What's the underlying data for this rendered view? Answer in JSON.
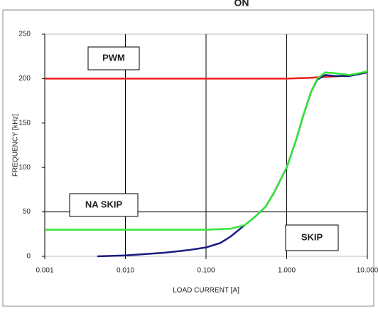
{
  "chart_data": {
    "type": "line",
    "title": "ON",
    "x_label": "LOAD CURRENT [A]",
    "y_label": "FREQUENCY [kHz]",
    "xscale": "log",
    "xlim": [
      0.001,
      10
    ],
    "xticks": [
      0.001,
      {
        "value": 0.01,
        "label": "0.010"
      },
      {
        "value": 0.1,
        "label": "0.100"
      },
      {
        "value": 1,
        "label": "1.000"
      },
      {
        "value": 10,
        "label": "10.000"
      }
    ],
    "ylim": [
      0,
      250
    ],
    "yticks": [
      0,
      50,
      100,
      150,
      200,
      250
    ],
    "reference_line": 50,
    "annotations": [
      "PWM",
      "NA SKIP",
      "SKIP"
    ],
    "series": [
      {
        "color": "#ee1c1c",
        "x": [
          0.001,
          0.5,
          1,
          2,
          3,
          5,
          10
        ],
        "values": [
          200,
          200,
          200,
          201,
          202,
          203,
          207
        ]
      },
      {
        "color": "#1a1a80",
        "x": [
          0.0045,
          0.01,
          0.03,
          0.06,
          0.1,
          0.15,
          0.2,
          0.3,
          0.4,
          0.55,
          0.7,
          1,
          1.3,
          1.6,
          2,
          2.4,
          3,
          4,
          6,
          10
        ],
        "values": [
          0,
          1,
          4,
          7,
          10,
          15,
          22,
          35,
          44,
          56,
          72,
          100,
          130,
          158,
          185,
          199,
          204,
          203,
          203,
          207
        ]
      },
      {
        "color": "#33e533",
        "x": [
          0.001,
          0.1,
          0.2,
          0.3,
          0.4,
          0.55,
          0.7,
          1,
          1.3,
          1.6,
          2,
          2.4,
          3,
          4,
          6,
          10
        ],
        "values": [
          30,
          30,
          31,
          35,
          44,
          56,
          72,
          100,
          130,
          158,
          185,
          200,
          207,
          206,
          204,
          208
        ]
      }
    ]
  }
}
